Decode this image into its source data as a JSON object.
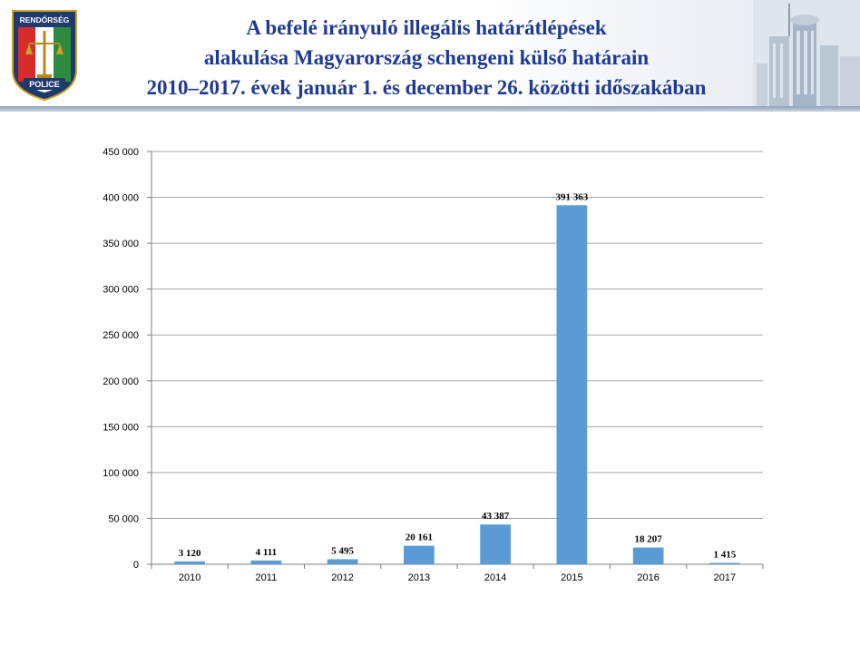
{
  "header": {
    "title_lines": [
      "A befelé irányuló illegális határátlépések",
      "alakulása  Magyarország schengeni külső határain",
      "2010–2017. évek január 1. és december 26. közötti időszakában"
    ],
    "badge_top_text": "RENDŐRSÉG",
    "badge_bottom_text": "POLICE",
    "badge_icon": "police-badge-icon",
    "city_icon": "city-skyline-icon"
  },
  "chart_data": {
    "type": "bar",
    "categories": [
      "2010",
      "2011",
      "2012",
      "2013",
      "2014",
      "2015",
      "2016",
      "2017"
    ],
    "values": [
      3120,
      4111,
      5495,
      20161,
      43387,
      391363,
      18207,
      1415
    ],
    "value_labels": [
      "3 120",
      "4 111",
      "5 495",
      "20 161",
      "43 387",
      "391 363",
      "18 207",
      "1 415"
    ],
    "ylim": [
      0,
      450000
    ],
    "yticks": [
      0,
      50000,
      100000,
      150000,
      200000,
      250000,
      300000,
      350000,
      400000,
      450000
    ],
    "ytick_labels": [
      "0",
      "50 000",
      "100 000",
      "150 000",
      "200 000",
      "250 000",
      "300 000",
      "350 000",
      "400 000",
      "450 000"
    ],
    "grid": true,
    "bar_color": "#5b9bd5",
    "title": "",
    "xlabel": "",
    "ylabel": ""
  }
}
